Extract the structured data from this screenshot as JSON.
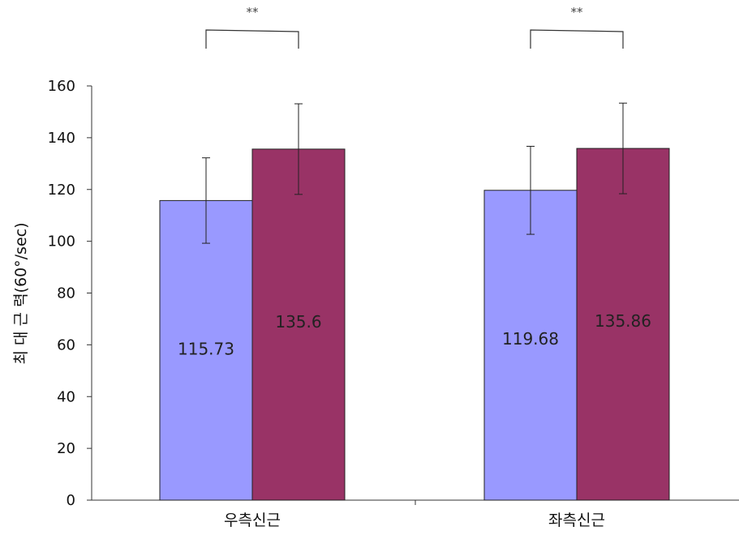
{
  "chart_data": {
    "type": "bar",
    "title": "",
    "ylabel": "최 대 근 력(60°/sec)",
    "xlabel": "",
    "ylim": [
      0,
      160
    ],
    "yticks": [
      0,
      20,
      40,
      60,
      80,
      100,
      120,
      140,
      160
    ],
    "categories": [
      "우측신근",
      "좌측신근"
    ],
    "series": [
      {
        "values": [
          115.73,
          119.68
        ],
        "errors": [
          16.5,
          17
        ],
        "labels": [
          "115.73",
          "119.68"
        ],
        "color": "#9999ff"
      },
      {
        "values": [
          135.6,
          135.86
        ],
        "errors": [
          17.5,
          17.5
        ],
        "labels": [
          "135.6",
          "135.86"
        ],
        "color": "#993366"
      }
    ],
    "significance": [
      "**",
      "**"
    ],
    "grid": false,
    "legend": "none"
  }
}
